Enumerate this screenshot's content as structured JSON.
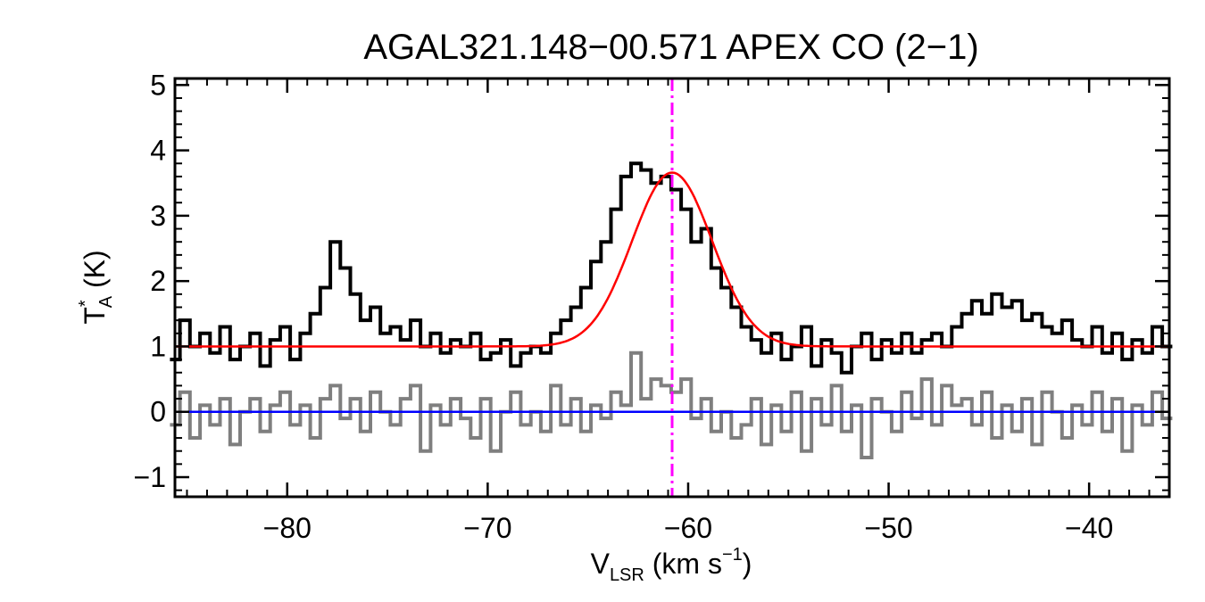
{
  "chart_data": {
    "type": "line",
    "title": "AGAL321.148−00.571   APEX CO (2−1)",
    "xlabel": {
      "main": "V",
      "sub": "LSR",
      "rest": " (km s",
      "sup": "−1",
      "close": ")"
    },
    "ylabel": {
      "main": "T",
      "sup": "*",
      "sub": "A",
      "rest": " (K)"
    },
    "xlim": [
      -85.6,
      -36.0
    ],
    "ylim": [
      -1.3,
      5.1
    ],
    "xticks": [
      -80,
      -70,
      -60,
      -50,
      -40
    ],
    "xtick_labels": [
      "−80",
      "−70",
      "−60",
      "−50",
      "−40"
    ],
    "yticks": [
      -1,
      0,
      1,
      2,
      3,
      4,
      5
    ],
    "ytick_labels": [
      "−1",
      "0",
      "1",
      "2",
      "3",
      "4",
      "5"
    ],
    "channel_width_kms": 0.25,
    "vlsr_marker": -60.8,
    "gaussian_fit": {
      "baseline": 1.0,
      "amplitude": 2.66,
      "center": -60.8,
      "sigma": 2.0
    },
    "series": [
      {
        "name": "spectrum",
        "color": "#000000",
        "x": [
          -85.6,
          -85.1,
          -84.6,
          -84.1,
          -83.6,
          -83.1,
          -82.6,
          -82.1,
          -81.6,
          -81.1,
          -80.6,
          -80.1,
          -79.6,
          -79.1,
          -78.6,
          -78.1,
          -77.6,
          -77.1,
          -76.6,
          -76.1,
          -75.6,
          -75.1,
          -74.6,
          -74.1,
          -73.6,
          -73.1,
          -72.6,
          -72.1,
          -71.6,
          -71.1,
          -70.6,
          -70.1,
          -69.6,
          -69.1,
          -68.6,
          -68.1,
          -67.6,
          -67.1,
          -66.6,
          -66.1,
          -65.6,
          -65.1,
          -64.6,
          -64.1,
          -63.6,
          -63.1,
          -62.6,
          -62.1,
          -61.6,
          -61.1,
          -60.6,
          -60.1,
          -59.6,
          -59.1,
          -58.6,
          -58.1,
          -57.6,
          -57.1,
          -56.6,
          -56.1,
          -55.6,
          -55.1,
          -54.6,
          -54.1,
          -53.6,
          -53.1,
          -52.6,
          -52.1,
          -51.6,
          -51.1,
          -50.6,
          -50.1,
          -49.6,
          -49.1,
          -48.6,
          -48.1,
          -47.6,
          -47.1,
          -46.6,
          -46.1,
          -45.6,
          -45.1,
          -44.6,
          -44.1,
          -43.6,
          -43.1,
          -42.6,
          -42.1,
          -41.6,
          -41.1,
          -40.6,
          -40.1,
          -39.6,
          -39.1,
          -38.6,
          -38.1,
          -37.6,
          -37.1,
          -36.6,
          -36.1
        ],
        "y": [
          0.8,
          1.4,
          1.0,
          1.2,
          0.9,
          1.3,
          0.8,
          1.0,
          1.2,
          0.7,
          1.1,
          1.3,
          0.8,
          1.2,
          1.5,
          1.9,
          2.6,
          2.2,
          1.8,
          1.4,
          1.6,
          1.2,
          1.3,
          1.1,
          1.4,
          1.0,
          1.2,
          0.9,
          1.1,
          1.0,
          1.2,
          0.8,
          0.9,
          1.1,
          0.7,
          0.9,
          1.0,
          0.9,
          1.2,
          1.4,
          1.6,
          1.9,
          2.3,
          2.6,
          3.1,
          3.6,
          3.8,
          3.7,
          3.5,
          3.6,
          3.4,
          3.1,
          2.6,
          2.8,
          2.2,
          1.9,
          1.6,
          1.3,
          1.1,
          0.9,
          1.2,
          0.8,
          1.0,
          1.3,
          0.7,
          1.1,
          0.9,
          0.6,
          1.0,
          1.2,
          0.8,
          1.1,
          0.9,
          1.2,
          0.9,
          1.1,
          1.2,
          1.0,
          1.3,
          1.5,
          1.7,
          1.5,
          1.8,
          1.6,
          1.7,
          1.4,
          1.5,
          1.3,
          1.2,
          1.4,
          1.1,
          1.0,
          1.3,
          0.9,
          1.2,
          0.8,
          1.1,
          0.9,
          1.3,
          1.0
        ]
      },
      {
        "name": "residual",
        "color": "#7f7f7f",
        "x": [
          -85.6,
          -85.1,
          -84.6,
          -84.1,
          -83.6,
          -83.1,
          -82.6,
          -82.1,
          -81.6,
          -81.1,
          -80.6,
          -80.1,
          -79.6,
          -79.1,
          -78.6,
          -78.1,
          -77.6,
          -77.1,
          -76.6,
          -76.1,
          -75.6,
          -75.1,
          -74.6,
          -74.1,
          -73.6,
          -73.1,
          -72.6,
          -72.1,
          -71.6,
          -71.1,
          -70.6,
          -70.1,
          -69.6,
          -69.1,
          -68.6,
          -68.1,
          -67.6,
          -67.1,
          -66.6,
          -66.1,
          -65.6,
          -65.1,
          -64.6,
          -64.1,
          -63.6,
          -63.1,
          -62.6,
          -62.1,
          -61.6,
          -61.1,
          -60.6,
          -60.1,
          -59.6,
          -59.1,
          -58.6,
          -58.1,
          -57.6,
          -57.1,
          -56.6,
          -56.1,
          -55.6,
          -55.1,
          -54.6,
          -54.1,
          -53.6,
          -53.1,
          -52.6,
          -52.1,
          -51.6,
          -51.1,
          -50.6,
          -50.1,
          -49.6,
          -49.1,
          -48.6,
          -48.1,
          -47.6,
          -47.1,
          -46.6,
          -46.1,
          -45.6,
          -45.1,
          -44.6,
          -44.1,
          -43.6,
          -43.1,
          -42.6,
          -42.1,
          -41.6,
          -41.1,
          -40.6,
          -40.1,
          -39.6,
          -39.1,
          -38.6,
          -38.1,
          -37.6,
          -37.1,
          -36.6,
          -36.1
        ],
        "y": [
          -0.2,
          0.3,
          -0.4,
          0.1,
          -0.2,
          0.2,
          -0.5,
          0.0,
          0.2,
          -0.3,
          0.1,
          0.3,
          -0.2,
          0.1,
          -0.4,
          0.2,
          0.4,
          -0.1,
          0.2,
          -0.3,
          0.3,
          0.0,
          -0.2,
          0.2,
          0.4,
          -0.6,
          0.1,
          -0.2,
          0.2,
          -0.1,
          -0.4,
          0.2,
          -0.6,
          0.0,
          0.3,
          -0.2,
          0.0,
          -0.3,
          0.4,
          -0.2,
          0.2,
          -0.3,
          0.1,
          -0.1,
          0.3,
          0.1,
          0.9,
          0.2,
          0.5,
          0.4,
          0.3,
          0.5,
          -0.1,
          0.2,
          -0.3,
          0.0,
          -0.4,
          -0.2,
          0.2,
          -0.5,
          0.1,
          -0.3,
          0.3,
          -0.6,
          0.2,
          -0.2,
          0.4,
          -0.3,
          0.1,
          -0.7,
          0.2,
          0.0,
          -0.3,
          0.3,
          -0.1,
          0.5,
          -0.2,
          0.4,
          0.1,
          0.2,
          -0.2,
          0.3,
          -0.4,
          0.1,
          -0.3,
          0.2,
          -0.5,
          0.3,
          0.0,
          -0.4,
          0.1,
          -0.2,
          0.3,
          -0.3,
          0.2,
          -0.6,
          0.1,
          -0.2,
          0.3,
          -0.1
        ]
      },
      {
        "name": "zero-baseline",
        "color": "#0000ff",
        "y_const": 0
      },
      {
        "name": "gaussian-fit",
        "color": "#ff0000"
      },
      {
        "name": "vlsr-marker",
        "color": "#ff00ff"
      }
    ]
  }
}
